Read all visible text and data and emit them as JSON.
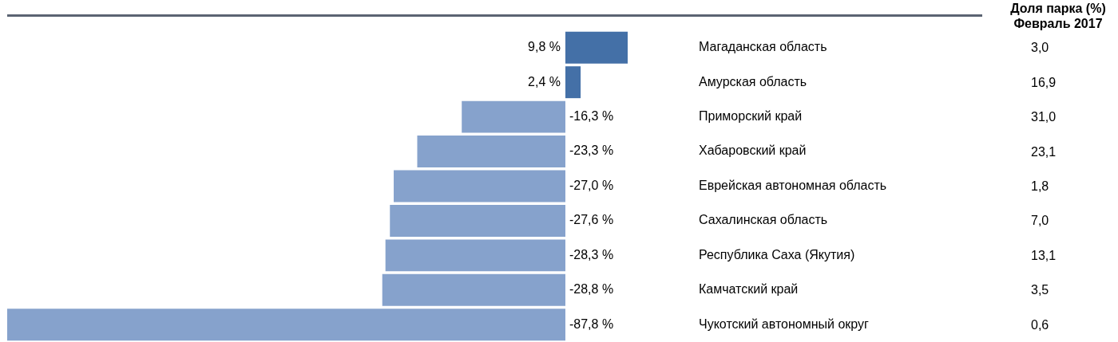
{
  "chart_data": [
    {
      "type": "bar",
      "orientation": "horizontal",
      "categories": [
        "Магаданская область",
        "Амурская область",
        "Приморский край",
        "Хабаровский край",
        "Еврейская автономная область",
        "Сахалинская область",
        "Республика Саха (Якутия)",
        "Камчатский край",
        "Чукотский автономный округ"
      ],
      "values": [
        9.8,
        2.4,
        -16.3,
        -23.3,
        -27.0,
        -27.6,
        -28.3,
        -28.8,
        -87.8
      ],
      "colors": [
        "#4470a7",
        "#4470a7",
        "#86a2cc",
        "#86a2cc",
        "#86a2cc",
        "#86a2cc",
        "#86a2cc",
        "#86a2cc",
        "#86a2cc"
      ],
      "value_labels": [
        "9,8 %",
        "2,4 %",
        "-16,3 %",
        "-23,3 %",
        "-27,0 %",
        "-27,6 %",
        "-28,3 %",
        "-28,8 %",
        "-87,8 %"
      ],
      "tick_labels": "y",
      "grid": false,
      "legend": false
    },
    {
      "type": "other",
      "title": "Доля парка (%)",
      "subtitle": "Февраль 2017",
      "values": [
        3.0,
        16.9,
        31.0,
        23.1,
        1.8,
        7.0,
        13.1,
        3.5,
        0.6
      ],
      "value_labels": [
        "3,0",
        "16,9",
        "31,0",
        "23,1",
        "1,8",
        "7,0",
        "13,1",
        "3,5",
        "0,6"
      ]
    }
  ]
}
